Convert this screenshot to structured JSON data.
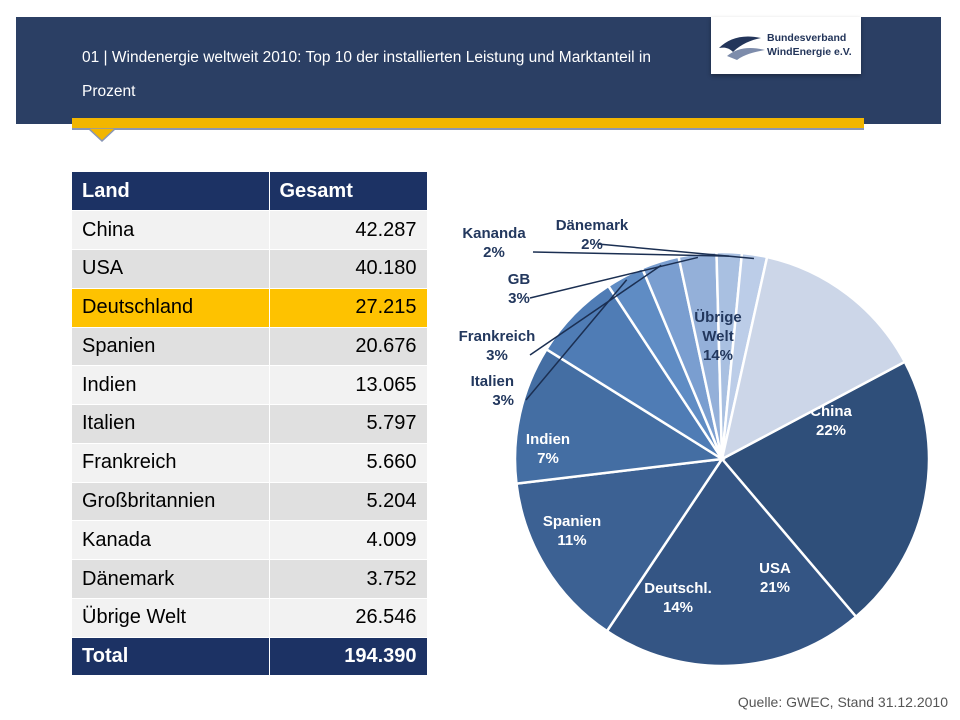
{
  "header": {
    "title": "01 | Windenergie weltweit 2010: Top 10 der installierten Leistung und Marktanteil in Prozent",
    "logo_line1": "Bundesverband",
    "logo_line2": "WindEnergie e.V."
  },
  "table": {
    "headers": [
      "Land",
      "Gesamt"
    ],
    "rows": [
      [
        "China",
        "42.287"
      ],
      [
        "USA",
        "40.180"
      ],
      [
        "Deutschland",
        "27.215"
      ],
      [
        "Spanien",
        "20.676"
      ],
      [
        "Indien",
        "13.065"
      ],
      [
        "Italien",
        "5.797"
      ],
      [
        "Frankreich",
        "5.660"
      ],
      [
        "Großbritannien",
        "5.204"
      ],
      [
        "Kanada",
        "4.009"
      ],
      [
        "Dänemark",
        "3.752"
      ],
      [
        "Übrige Welt",
        "26.546"
      ]
    ],
    "total": [
      "Total",
      "194.390"
    ],
    "highlight_color": "#fec200"
  },
  "chart_data": {
    "type": "pie",
    "slices": [
      {
        "label": "China",
        "value": 22,
        "display": "22%",
        "color": "#2f4f7a"
      },
      {
        "label": "USA",
        "value": 21,
        "display": "21%",
        "color": "#345584"
      },
      {
        "label": "Deutschl.",
        "value": 14,
        "display": "14%",
        "color": "#3c6193"
      },
      {
        "label": "Spanien",
        "value": 11,
        "display": "11%",
        "color": "#446ea3"
      },
      {
        "label": "Indien",
        "value": 7,
        "display": "7%",
        "color": "#4f7cb5"
      },
      {
        "label": "Italien",
        "value": 3,
        "display": "3%",
        "color": "#5f8cc4"
      },
      {
        "label": "Frankreich",
        "value": 3,
        "display": "3%",
        "color": "#7a9ed0"
      },
      {
        "label": "GB",
        "value": 3,
        "display": "3%",
        "color": "#94b0d9"
      },
      {
        "label": "Kananda",
        "value": 2,
        "display": "2%",
        "color": "#a9c0e1"
      },
      {
        "label": "Dänemark",
        "value": 2,
        "display": "2%",
        "color": "#bccde8"
      },
      {
        "label": "Übrige Welt",
        "value": 14,
        "display": "14%",
        "color": "#ccd6e8"
      }
    ],
    "label_color": "#23385e"
  },
  "source": "Quelle: GWEC, Stand 31.12.2010"
}
